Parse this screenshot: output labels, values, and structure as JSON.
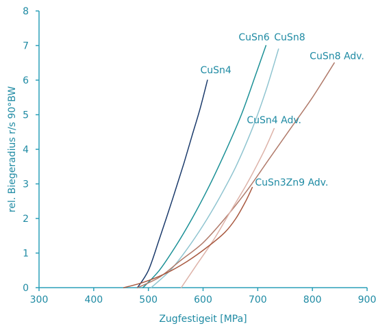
{
  "chart_data": {
    "type": "line",
    "title": "",
    "xlabel": "Zugfestigeit [MPa]",
    "ylabel": "rel. Biegeradius r/s 90°BW",
    "xlim": [
      300,
      900
    ],
    "ylim": [
      0,
      8
    ],
    "x_ticks": [
      "300",
      "400",
      "500",
      "600",
      "700",
      "800",
      "900"
    ],
    "y_ticks": [
      "0",
      "1",
      "2",
      "3",
      "4",
      "5",
      "6",
      "7",
      "8"
    ],
    "grid": false,
    "axis_color": "#2a9fb8",
    "label_color": "#1e8aa3",
    "series": [
      {
        "name": "CuSn4",
        "color": "#1a3a6b",
        "label_at": [
          595,
          6.2
        ],
        "points": [
          [
            480,
            0
          ],
          [
            500,
            0.5
          ],
          [
            520,
            1.4
          ],
          [
            545,
            2.6
          ],
          [
            565,
            3.6
          ],
          [
            580,
            4.4
          ],
          [
            595,
            5.2
          ],
          [
            608,
            6.0
          ]
        ]
      },
      {
        "name": "CuSn6",
        "color": "#1b9096",
        "label_at": [
          665,
          7.15
        ],
        "points": [
          [
            490,
            0
          ],
          [
            520,
            0.5
          ],
          [
            550,
            1.2
          ],
          [
            580,
            2.0
          ],
          [
            610,
            2.9
          ],
          [
            640,
            3.9
          ],
          [
            670,
            5.0
          ],
          [
            695,
            6.1
          ],
          [
            715,
            7.0
          ]
        ]
      },
      {
        "name": "CuSn8",
        "color": "#8fc4d0",
        "label_at": [
          730,
          7.15
        ],
        "points": [
          [
            505,
            0
          ],
          [
            540,
            0.5
          ],
          [
            570,
            1.1
          ],
          [
            600,
            1.8
          ],
          [
            630,
            2.6
          ],
          [
            660,
            3.5
          ],
          [
            690,
            4.6
          ],
          [
            715,
            5.7
          ],
          [
            738,
            6.9
          ]
        ]
      },
      {
        "name": "CuSn8 Adv.",
        "color": "#b07a6a",
        "label_at": [
          795,
          6.6
        ],
        "points": [
          [
            480,
            0
          ],
          [
            520,
            0.3
          ],
          [
            560,
            0.8
          ],
          [
            600,
            1.3
          ],
          [
            640,
            2.0
          ],
          [
            680,
            2.8
          ],
          [
            720,
            3.7
          ],
          [
            760,
            4.6
          ],
          [
            800,
            5.5
          ],
          [
            840,
            6.5
          ]
        ]
      },
      {
        "name": "CuSn4 Adv.",
        "color": "#ddb2a8",
        "label_at": [
          680,
          4.75
        ],
        "points": [
          [
            560,
            0
          ],
          [
            590,
            0.7
          ],
          [
            620,
            1.4
          ],
          [
            650,
            2.2
          ],
          [
            680,
            3.0
          ],
          [
            710,
            3.9
          ],
          [
            730,
            4.6
          ]
        ]
      },
      {
        "name": "CuSn3Zn9 Adv.",
        "color": "#a8583f",
        "label_at": [
          695,
          2.95
        ],
        "points": [
          [
            455,
            0
          ],
          [
            490,
            0.15
          ],
          [
            530,
            0.4
          ],
          [
            570,
            0.75
          ],
          [
            610,
            1.2
          ],
          [
            640,
            1.6
          ],
          [
            660,
            2.0
          ],
          [
            678,
            2.5
          ],
          [
            690,
            2.9
          ]
        ]
      }
    ]
  }
}
